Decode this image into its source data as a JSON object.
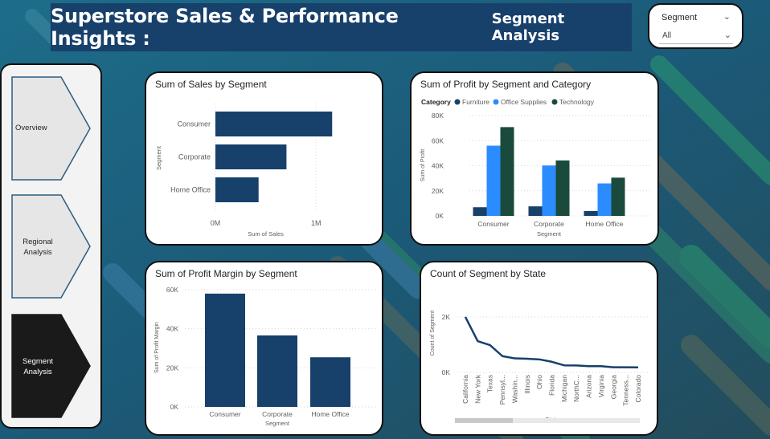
{
  "title": {
    "main": "Superstore Sales & Performance Insights :",
    "sub": "Segment Analysis"
  },
  "slicer": {
    "label": "Segment",
    "value": "All"
  },
  "nav": [
    {
      "label": "Overview",
      "active": false
    },
    {
      "label": "Regional Analysis",
      "active": false
    },
    {
      "label": "Segment Analysis",
      "active": true
    }
  ],
  "colors": {
    "navy": "#17406b",
    "office_supplies": "#2b8cff",
    "technology": "#1a4a3c",
    "nav_active": "#1a1a1a"
  },
  "charts": {
    "sales": {
      "title": "Sum of Sales by Segment",
      "chart_data": {
        "type": "bar",
        "orientation": "horizontal",
        "categories": [
          "Consumer",
          "Corporate",
          "Home Office"
        ],
        "values": [
          1160000,
          706000,
          429000
        ],
        "xlabel": "Sum of Sales",
        "ylabel": "Segment",
        "xticks": [
          {
            "v": 0,
            "label": "0M"
          },
          {
            "v": 1000000,
            "label": "1M"
          }
        ],
        "xlim": [
          0,
          1150000
        ]
      }
    },
    "profit_cat": {
      "title": "Sum of Profit by Segment and Category",
      "legend_title": "Category",
      "chart_data": {
        "type": "bar",
        "categories": [
          "Consumer",
          "Corporate",
          "Home Office"
        ],
        "series": [
          {
            "name": "Furniture",
            "values": [
              6900,
              7600,
              3900
            ]
          },
          {
            "name": "Office Supplies",
            "values": [
              56000,
              40200,
              25900
            ]
          },
          {
            "name": "Technology",
            "values": [
              70800,
              44200,
              30500
            ]
          }
        ],
        "xlabel": "Segment",
        "ylabel": "Sum of Profit",
        "yticks": [
          {
            "v": 0,
            "label": "0K"
          },
          {
            "v": 20000,
            "label": "20K"
          },
          {
            "v": 40000,
            "label": "40K"
          },
          {
            "v": 60000,
            "label": "60K"
          },
          {
            "v": 80000,
            "label": "80K"
          }
        ],
        "ylim": [
          0,
          80000
        ],
        "legend_position": "top-left"
      }
    },
    "margin": {
      "title": "Sum of Profit Margin by Segment",
      "chart_data": {
        "type": "bar",
        "categories": [
          "Consumer",
          "Corporate",
          "Home Office"
        ],
        "values": [
          58000,
          36600,
          25400
        ],
        "xlabel": "Segment",
        "ylabel": "Sum of Profit Margin",
        "yticks": [
          {
            "v": 0,
            "label": "0K"
          },
          {
            "v": 20000,
            "label": "20K"
          },
          {
            "v": 40000,
            "label": "40K"
          },
          {
            "v": 60000,
            "label": "60K"
          }
        ],
        "ylim": [
          0,
          60000
        ]
      }
    },
    "state": {
      "title": "Count of Segment by State",
      "chart_data": {
        "type": "line",
        "x": [
          "California",
          "New York",
          "Texas",
          "Pennsyl...",
          "Washin...",
          "Illinois",
          "Ohio",
          "Florida",
          "Michigan",
          "NorthC...",
          "Arizona",
          "Virginia",
          "Georgia",
          "Tenness...",
          "Colorado"
        ],
        "values": [
          2001,
          1128,
          985,
          587,
          506,
          492,
          469,
          383,
          255,
          249,
          224,
          224,
          184,
          183,
          182
        ],
        "xlabel": "State",
        "ylabel": "Count of Segment",
        "yticks": [
          {
            "v": 0,
            "label": "0K"
          },
          {
            "v": 2000,
            "label": "2K"
          }
        ],
        "ylim": [
          0,
          2000
        ]
      }
    }
  }
}
